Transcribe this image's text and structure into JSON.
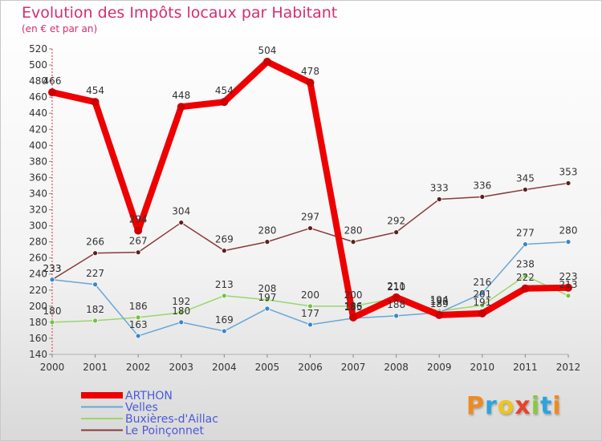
{
  "title": "Evolution des Impôts locaux par Habitant",
  "subtitle": "(en € et par an)",
  "logo": {
    "text": "Proxiti",
    "letters": [
      "P",
      "r",
      "o",
      "x",
      "i",
      "t",
      "i"
    ],
    "colors": [
      "#f08a1e",
      "#2ea3dd",
      "#f0c419",
      "#e8422b",
      "#8cc63f",
      "#2ea3dd",
      "#f08a1e"
    ]
  },
  "chart_data": {
    "type": "line",
    "x": [
      "2000",
      "2001",
      "2002",
      "2003",
      "2004",
      "2005",
      "2006",
      "2007",
      "2008",
      "2009",
      "2010",
      "2011",
      "2012"
    ],
    "ylim": [
      140,
      520
    ],
    "yticks": [
      140,
      160,
      180,
      200,
      220,
      240,
      260,
      280,
      300,
      320,
      340,
      360,
      380,
      400,
      420,
      440,
      460,
      480,
      500,
      520
    ],
    "grid": false,
    "legend_position": "bottom-left",
    "series": [
      {
        "name": "ARTHON",
        "color": "#ee0000",
        "marker_color": "#cc0000",
        "label_color": "#333333",
        "values": [
          466,
          454,
          294,
          448,
          454,
          504,
          478,
          186,
          211,
          189,
          191,
          222,
          223
        ]
      },
      {
        "name": "Velles",
        "color": "#6aa6d6",
        "marker_color": "#3b86c6",
        "label_color": "#333333",
        "values": [
          233,
          227,
          163,
          180,
          169,
          197,
          177,
          185,
          188,
          192,
          216,
          277,
          280
        ]
      },
      {
        "name": "Buxières-d'Aillac",
        "color": "#9ad66a",
        "marker_color": "#76c043",
        "label_color": "#333333",
        "values": [
          180,
          182,
          186,
          192,
          213,
          208,
          200,
          200,
          210,
          194,
          201,
          238,
          213
        ]
      },
      {
        "name": "Le Poinçonnet",
        "color": "#8a3a3a",
        "marker_color": "#5c1f1f",
        "label_color": "#333333",
        "values": [
          233,
          266,
          267,
          304,
          269,
          280,
          297,
          280,
          292,
          333,
          336,
          345,
          353
        ]
      }
    ]
  }
}
